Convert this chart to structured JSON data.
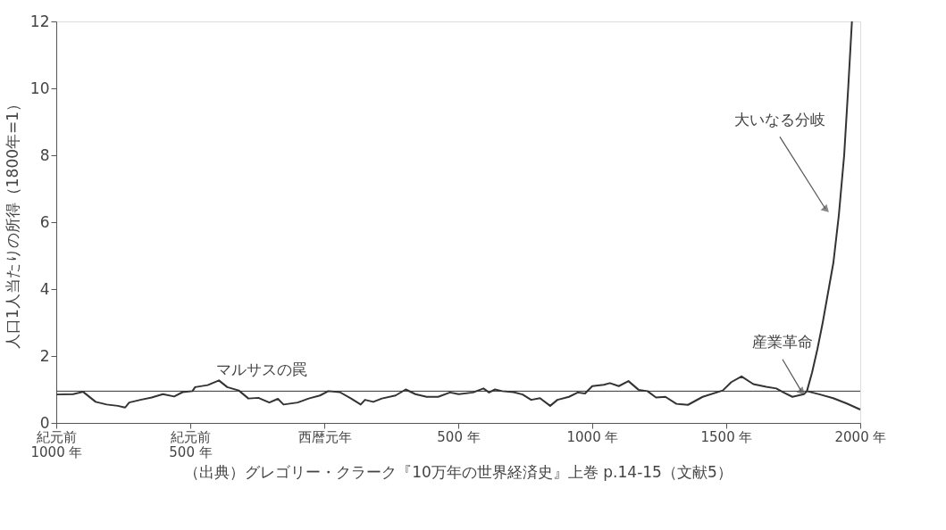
{
  "chart_data": {
    "type": "line",
    "ylabel": "人口1人当たりの所得（1800年=1）",
    "xlim": [
      -1000,
      2000
    ],
    "xticks": [
      {
        "value": -1000,
        "label": "紀元前\n1000 年"
      },
      {
        "value": -500,
        "label": "紀元前\n500 年"
      },
      {
        "value": 0,
        "label": "西暦元年"
      },
      {
        "value": 500,
        "label": "500 年"
      },
      {
        "value": 1000,
        "label": "1000 年"
      },
      {
        "value": 1500,
        "label": "1500 年"
      },
      {
        "value": 2000,
        "label": "2000 年"
      }
    ],
    "ylim": [
      0,
      12
    ],
    "yticks": [
      0,
      2,
      4,
      6,
      8,
      10,
      12
    ],
    "grid": false,
    "marker": "none",
    "line_style": "solid",
    "series": [
      {
        "color": "#333333",
        "x": [
          -1000,
          -937,
          -900,
          -853,
          -812,
          -770,
          -743,
          -728,
          -686,
          -644,
          -602,
          -560,
          -529,
          -492,
          -482,
          -435,
          -393,
          -362,
          -319,
          -283,
          -246,
          -205,
          -173,
          -152,
          -99,
          -58,
          -16,
          15,
          58,
          100,
          136,
          152,
          183,
          215,
          266,
          304,
          340,
          382,
          425,
          469,
          502,
          555,
          594,
          615,
          637,
          664,
          706,
          740,
          772,
          805,
          843,
          870,
          913,
          946,
          973,
          1000,
          1043,
          1066,
          1099,
          1135,
          1173,
          1206,
          1238,
          1273,
          1314,
          1357,
          1412,
          1487,
          1519,
          1557,
          1601,
          1649,
          1687,
          1714,
          1747,
          1790,
          1801
        ],
        "values": [
          0.85,
          0.86,
          0.93,
          0.63,
          0.55,
          0.51,
          0.46,
          0.61,
          0.69,
          0.76,
          0.86,
          0.79,
          0.92,
          0.95,
          1.07,
          1.13,
          1.27,
          1.07,
          0.97,
          0.73,
          0.75,
          0.61,
          0.72,
          0.55,
          0.61,
          0.73,
          0.82,
          0.95,
          0.92,
          0.73,
          0.55,
          0.69,
          0.63,
          0.73,
          0.82,
          1.0,
          0.86,
          0.78,
          0.78,
          0.91,
          0.86,
          0.91,
          1.03,
          0.91,
          1.0,
          0.95,
          0.92,
          0.85,
          0.69,
          0.74,
          0.51,
          0.69,
          0.78,
          0.91,
          0.88,
          1.1,
          1.14,
          1.19,
          1.1,
          1.25,
          0.99,
          0.95,
          0.76,
          0.78,
          0.57,
          0.54,
          0.78,
          0.97,
          1.22,
          1.39,
          1.16,
          1.08,
          1.03,
          0.91,
          0.78,
          0.86,
          0.95
        ]
      },
      {
        "color": "#333333",
        "x": [
          1801,
          1820,
          1840,
          1860,
          1880,
          1900,
          1920,
          1940,
          1955,
          1969
        ],
        "values": [
          0.95,
          1.5,
          2.2,
          3.0,
          3.9,
          4.8,
          6.2,
          8.0,
          10.0,
          12.0
        ]
      },
      {
        "color": "#333333",
        "x": [
          1801,
          1850,
          1899,
          1950,
          2000
        ],
        "values": [
          0.95,
          0.85,
          0.74,
          0.58,
          0.4
        ]
      }
    ],
    "ref_lines": [
      {
        "axis": "y",
        "value": 0.95,
        "color": "#333333"
      }
    ],
    "annotations": [
      "マルサスの罠",
      {
        "text": "産業革命",
        "x": 1780,
        "y": 0.95
      },
      {
        "text": "大いなる分岐",
        "x": 1870,
        "y": 6.4
      },
      "（出典）グレゴリー・クラーク『10万年の世界経済史』上巻 p.14-15（文献5）"
    ]
  }
}
